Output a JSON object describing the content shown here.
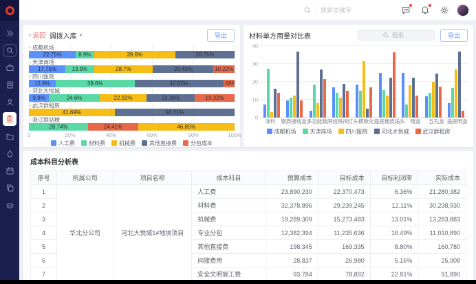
{
  "topbar": {
    "search_placeholder": "搜索关键字",
    "icons": [
      {
        "name": "message-icon",
        "badge": true
      },
      {
        "name": "bell-icon",
        "badge": true
      },
      {
        "name": "gear-icon",
        "badge": false
      }
    ]
  },
  "sidebar": {
    "items": [
      {
        "icon": "chevrons-right-icon",
        "active": false,
        "boxed": false
      },
      {
        "icon": "search-icon",
        "active": false,
        "boxed": true
      },
      {
        "icon": "briefcase-icon",
        "active": false,
        "boxed": false
      },
      {
        "icon": "document-icon",
        "active": false,
        "boxed": false
      },
      {
        "icon": "user-icon",
        "active": false,
        "boxed": false
      },
      {
        "icon": "clipboard-icon",
        "active": true,
        "boxed": false
      },
      {
        "icon": "folder-icon",
        "active": false,
        "boxed": false
      },
      {
        "icon": "drop-icon",
        "active": false,
        "boxed": false
      },
      {
        "icon": "calendar-icon",
        "active": false,
        "boxed": false
      },
      {
        "icon": "copy-icon",
        "active": false,
        "boxed": false
      },
      {
        "icon": "layers-icon",
        "active": false,
        "boxed": false
      }
    ]
  },
  "left_panel": {
    "back_chevron": "‹",
    "back_label": "返回",
    "title": "调拨入库",
    "caret": "∨",
    "export_label": "导出"
  },
  "right_panel": {
    "title": "材料单方用量对比表",
    "search_placeholder": "搜索",
    "export_label": "导出"
  },
  "colors": {
    "blue": "#5B8FF9",
    "green": "#5AD8A6",
    "orange": "#F6BD16",
    "slate": "#5D7092",
    "red": "#E8684A"
  },
  "chart_data": [
    {
      "type": "bar",
      "orientation": "horizontal",
      "stacked": true,
      "title": "调拨入库",
      "unit": "%",
      "xlim": [
        0,
        100
      ],
      "x_ticks": [
        "0",
        "20%",
        "40%",
        "60%",
        "80%",
        "100%"
      ],
      "legend": [
        {
          "name": "人工费",
          "color": "#5B8FF9"
        },
        {
          "name": "材料费",
          "color": "#5AD8A6"
        },
        {
          "name": "机械费",
          "color": "#F6BD16"
        },
        {
          "name": "其他直接费",
          "color": "#5D7092"
        },
        {
          "name": "分包成本",
          "color": "#E8684A"
        }
      ],
      "rows": [
        {
          "label": "成都机场",
          "segments": [
            {
              "series": "人工费",
              "value": 22.75
            },
            {
              "series": "材料费",
              "value": 8.9
            },
            {
              "series": "机械费",
              "value": 39.6
            },
            {
              "series": "其他直接费",
              "value": 28.75
            }
          ]
        },
        {
          "label": "天津商场",
          "segments": [
            {
              "series": "人工费",
              "value": 17.75
            },
            {
              "series": "材料费",
              "value": 13.9
            },
            {
              "series": "机械费",
              "value": 28.7
            },
            {
              "series": "其他直接费",
              "value": 29.43
            },
            {
              "series": "分包成本",
              "value": 10.22
            }
          ]
        },
        {
          "label": "四川医院",
          "segments": [
            {
              "series": "人工费",
              "value": 12.9
            },
            {
              "series": "材料费",
              "value": 38.6
            },
            {
              "series": "其他直接费",
              "value": 42.82
            },
            {
              "series": "分包成本",
              "value": 5.68
            }
          ]
        },
        {
          "label": "河北大悦城",
          "segments": [
            {
              "series": "人工费",
              "value": 9.8
            },
            {
              "series": "材料费",
              "value": 24.6
            },
            {
              "series": "机械费",
              "value": 22.92
            },
            {
              "series": "其他直接费",
              "value": 23.36
            },
            {
              "series": "分包成本",
              "value": 19.32
            }
          ]
        },
        {
          "label": "武汉群租房",
          "segments": [
            {
              "series": "机械费",
              "value": 41.69
            },
            {
              "series": "其他直接费",
              "value": 58.31
            }
          ]
        },
        {
          "label": "浙江联站楼",
          "segments": [
            {
              "series": "材料费",
              "value": 28.74
            },
            {
              "series": "分包成本",
              "value": 24.41
            },
            {
              "series": "机械费",
              "value": 46.85
            }
          ]
        }
      ]
    },
    {
      "type": "bar",
      "grouped": true,
      "title": "材料单方用量对比表",
      "ylim": [
        0,
        40
      ],
      "y_ticks": [
        0,
        10,
        20,
        30,
        40
      ],
      "categories": [
        "涂料",
        "钢质接线盒",
        "多功能跳闸线",
        "铁间灯头",
        "模数化插座",
        "橡皮插头",
        "暗盒",
        "五孔盒",
        "插座明盒"
      ],
      "series": [
        {
          "name": "成都机场",
          "color": "#5B8FF9",
          "values": [
            7.5,
            9.5,
            4,
            17,
            18.5,
            25,
            25,
            12,
            8
          ]
        },
        {
          "name": "天津商场",
          "color": "#5AD8A6",
          "values": [
            27.5,
            11,
            18.5,
            14,
            15,
            15.5,
            7.5,
            14,
            16.5
          ]
        },
        {
          "name": "四川医院",
          "color": "#F6BD16",
          "values": [
            3,
            12.5,
            8,
            11,
            31.5,
            12.5,
            18,
            20,
            27
          ]
        },
        {
          "name": "河北大悦城",
          "color": "#5D7092",
          "values": [
            16,
            37,
            27,
            19,
            5,
            22.5,
            22.5,
            24.5,
            37
          ]
        },
        {
          "name": "武汉群租房",
          "color": "#E8684A",
          "values": [
            14,
            9.5,
            21.5,
            15,
            17,
            36.5,
            12.5,
            17.5,
            4
          ]
        }
      ]
    }
  ],
  "table": {
    "title": "成本科目分析表",
    "columns": [
      "序号",
      "所属公司",
      "项目名称",
      "成本科目",
      "预算成本",
      "目标成本",
      "目标利润率",
      "实际成本"
    ],
    "company": "华北分公司",
    "project": "河北大悦城1#地块项目",
    "rows": [
      [
        "1",
        "人工费",
        "23,890,230",
        "22,370,473",
        "6.36%",
        "21,280,382"
      ],
      [
        "2",
        "材料费",
        "32,378,896",
        "29,239,245",
        "12.11%",
        "30,238,930"
      ],
      [
        "3",
        "机械费",
        "19,289,309",
        "15,273,483",
        "13.01%",
        "13,283,883"
      ],
      [
        "4",
        "专业分包",
        "12,382,394",
        "11,235,636",
        "16.49%",
        "11,010,890"
      ],
      [
        "5",
        "其他直接费",
        "198,345",
        "169,335",
        "8.80%",
        "160,780"
      ],
      [
        "6",
        "间接费用",
        "28,837",
        "26,980",
        "5.16%",
        "25,908"
      ],
      [
        "7",
        "安全文明施工费",
        "93,784",
        "78,892",
        "22.81%",
        "91,890"
      ]
    ]
  }
}
